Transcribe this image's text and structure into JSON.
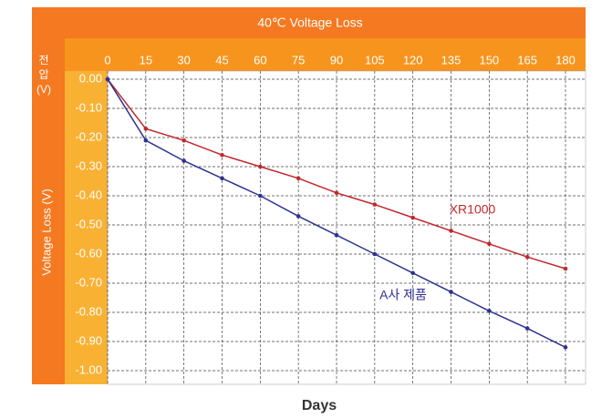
{
  "chart_data": {
    "type": "line",
    "title": "40℃ Voltage Loss",
    "xlabel": "Days",
    "ylabel": "Voltage Loss (V)",
    "ylabel_ko": "전압 (V)",
    "x": [
      0,
      15,
      30,
      45,
      60,
      75,
      90,
      105,
      120,
      135,
      150,
      165,
      180
    ],
    "series": [
      {
        "name": "XR1000",
        "color": "#c1272d",
        "values": [
          0,
          -0.17,
          -0.21,
          -0.26,
          -0.3,
          -0.34,
          -0.39,
          -0.43,
          -0.475,
          -0.52,
          -0.565,
          -0.61,
          -0.65
        ]
      },
      {
        "name": "A사 제품",
        "color": "#2e3192",
        "values": [
          0,
          -0.21,
          -0.28,
          -0.34,
          -0.4,
          -0.47,
          -0.535,
          -0.6,
          -0.665,
          -0.73,
          -0.795,
          -0.855,
          -0.92
        ]
      }
    ],
    "xlim": [
      0,
      180
    ],
    "xticks": [
      0,
      15,
      30,
      45,
      60,
      75,
      90,
      105,
      120,
      135,
      150,
      165,
      180
    ],
    "ylim": [
      -1,
      0
    ],
    "yticks": [
      {
        "value": 0,
        "label": "0.00"
      },
      {
        "value": -0.1,
        "label": "-0.10"
      },
      {
        "value": -0.2,
        "label": "-0.20"
      },
      {
        "value": -0.3,
        "label": "-0.30"
      },
      {
        "value": -0.4,
        "label": "-0.40"
      },
      {
        "value": -0.5,
        "label": "-0.50"
      },
      {
        "value": -0.6,
        "label": "-0.60"
      },
      {
        "value": -0.7,
        "label": "-0.70"
      },
      {
        "value": -0.8,
        "label": "-0.80"
      },
      {
        "value": -0.9,
        "label": "-0.90"
      },
      {
        "value": -1,
        "label": "-1.00"
      }
    ],
    "grid": true
  }
}
